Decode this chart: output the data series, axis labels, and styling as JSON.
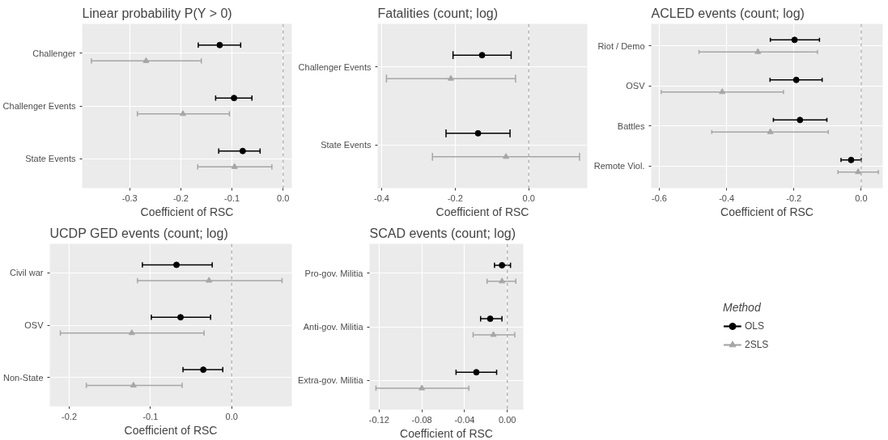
{
  "chart_data": [
    {
      "type": "scatter",
      "orientation": "horizontal",
      "title": "Linear probability P(Y > 0)",
      "xlabel": "Coefficient of RSC",
      "categories": [
        "Challenger",
        "Challenger Events",
        "State Events"
      ],
      "xlim": [
        -0.393,
        0.017
      ],
      "xticks": [
        -0.3,
        -0.2,
        -0.1,
        {
          "value": 0,
          "label": "0.0"
        }
      ],
      "grid": true,
      "legend": false,
      "ref_lines": [
        {
          "axis": "x",
          "value": 0,
          "line_style": "dashed",
          "color": "#a6a6a6"
        }
      ],
      "series": [
        {
          "color": "#000000",
          "marker": "circle",
          "values": [
            -0.124,
            -0.096,
            -0.079
          ],
          "errors": [
            [
              -0.166,
              -0.083
            ],
            [
              -0.132,
              -0.061
            ],
            [
              -0.126,
              -0.045
            ]
          ]
        },
        {
          "color": "#a6a6a6",
          "marker": "triangle",
          "values": [
            -0.268,
            -0.196,
            -0.095
          ],
          "errors": [
            [
              -0.375,
              -0.16
            ],
            [
              -0.285,
              -0.105
            ],
            [
              -0.167,
              -0.022
            ]
          ]
        }
      ]
    },
    {
      "type": "scatter",
      "orientation": "horizontal",
      "title": "Fatalities (count; log)",
      "xlabel": "Coefficient of RSC",
      "categories": [
        "Challenger Events",
        "State Events"
      ],
      "xlim": [
        -0.411,
        0.159
      ],
      "xticks": [
        -0.4,
        -0.2,
        {
          "value": 0,
          "label": "0.0"
        }
      ],
      "grid": true,
      "legend": false,
      "ref_lines": [
        {
          "axis": "x",
          "value": 0,
          "line_style": "dashed",
          "color": "#a6a6a6"
        }
      ],
      "series": [
        {
          "color": "#000000",
          "marker": "circle",
          "values": [
            -0.127,
            -0.138
          ],
          "errors": [
            [
              -0.206,
              -0.048
            ],
            [
              -0.225,
              -0.051
            ]
          ]
        },
        {
          "color": "#a6a6a6",
          "marker": "triangle",
          "values": [
            -0.212,
            -0.062
          ],
          "errors": [
            [
              -0.387,
              -0.036
            ],
            [
              -0.262,
              0.138
            ]
          ]
        }
      ]
    },
    {
      "type": "scatter",
      "orientation": "horizontal",
      "title": "ACLED events (count; log)",
      "xlabel": "Coefficient of RSC",
      "categories": [
        "Riot / Demo",
        "OSV",
        "Battles",
        "Remote Viol."
      ],
      "xlim": [
        -0.624,
        0.064
      ],
      "xticks": [
        -0.6,
        -0.4,
        -0.2,
        {
          "value": 0,
          "label": "0.0"
        }
      ],
      "grid": true,
      "legend": false,
      "ref_lines": [
        {
          "axis": "x",
          "value": 0,
          "line_style": "dashed",
          "color": "#a6a6a6"
        }
      ],
      "series": [
        {
          "color": "#000000",
          "marker": "circle",
          "values": [
            -0.198,
            -0.193,
            -0.182,
            -0.03
          ],
          "errors": [
            [
              -0.27,
              -0.124
            ],
            [
              -0.271,
              -0.116
            ],
            [
              -0.261,
              -0.102
            ],
            [
              -0.06,
              0.0
            ]
          ]
        },
        {
          "color": "#a6a6a6",
          "marker": "triangle",
          "values": [
            -0.307,
            -0.413,
            -0.27,
            -0.009
          ],
          "errors": [
            [
              -0.482,
              -0.13
            ],
            [
              -0.594,
              -0.231
            ],
            [
              -0.444,
              -0.098
            ],
            [
              -0.069,
              0.051
            ]
          ]
        }
      ]
    },
    {
      "type": "scatter",
      "orientation": "horizontal",
      "title": "UCDP GED events (count; log)",
      "xlabel": "Coefficient of RSC",
      "categories": [
        "Civil war",
        "OSV",
        "Non-State"
      ],
      "xlim": [
        -0.224,
        0.074
      ],
      "xticks": [
        -0.2,
        -0.1,
        {
          "value": 0,
          "label": "0.0"
        }
      ],
      "grid": true,
      "legend": false,
      "ref_lines": [
        {
          "axis": "x",
          "value": 0,
          "line_style": "dashed",
          "color": "#a6a6a6"
        }
      ],
      "series": [
        {
          "color": "#000000",
          "marker": "circle",
          "values": [
            -0.068,
            -0.063,
            -0.035
          ],
          "errors": [
            [
              -0.11,
              -0.024
            ],
            [
              -0.099,
              -0.026
            ],
            [
              -0.06,
              -0.011
            ]
          ]
        },
        {
          "color": "#a6a6a6",
          "marker": "triangle",
          "values": [
            -0.028,
            -0.123,
            -0.121
          ],
          "errors": [
            [
              -0.116,
              0.062
            ],
            [
              -0.211,
              -0.034
            ],
            [
              -0.179,
              -0.061
            ]
          ]
        }
      ]
    },
    {
      "type": "scatter",
      "orientation": "horizontal",
      "title": "SCAD events (count; log)",
      "xlabel": "Coefficient of RSC",
      "categories": [
        "Pro-gov. Militia",
        "Anti-gov. Militia",
        "Extra-gov. Militia"
      ],
      "xlim": [
        -0.129,
        0.015
      ],
      "xticks": [
        {
          "value": -0.12,
          "label": "-0.12"
        },
        {
          "value": -0.08,
          "label": "-0.08"
        },
        {
          "value": -0.04,
          "label": "-0.04"
        },
        {
          "value": 0,
          "label": "0.00"
        }
      ],
      "grid": true,
      "legend": "right",
      "legend_title": "Method",
      "ref_lines": [
        {
          "axis": "x",
          "value": 0,
          "line_style": "dashed",
          "color": "#a6a6a6"
        }
      ],
      "series": [
        {
          "name": "OLS",
          "color": "#000000",
          "marker": "circle",
          "values": [
            -0.005,
            -0.016,
            -0.029
          ],
          "errors": [
            [
              -0.012,
              0.003
            ],
            [
              -0.025,
              -0.005
            ],
            [
              -0.048,
              -0.01
            ]
          ]
        },
        {
          "name": "2SLS",
          "color": "#a6a6a6",
          "marker": "triangle",
          "values": [
            -0.005,
            -0.013,
            -0.08
          ],
          "errors": [
            [
              -0.019,
              0.008
            ],
            [
              -0.032,
              0.007
            ],
            [
              -0.123,
              -0.036
            ]
          ]
        }
      ]
    }
  ]
}
